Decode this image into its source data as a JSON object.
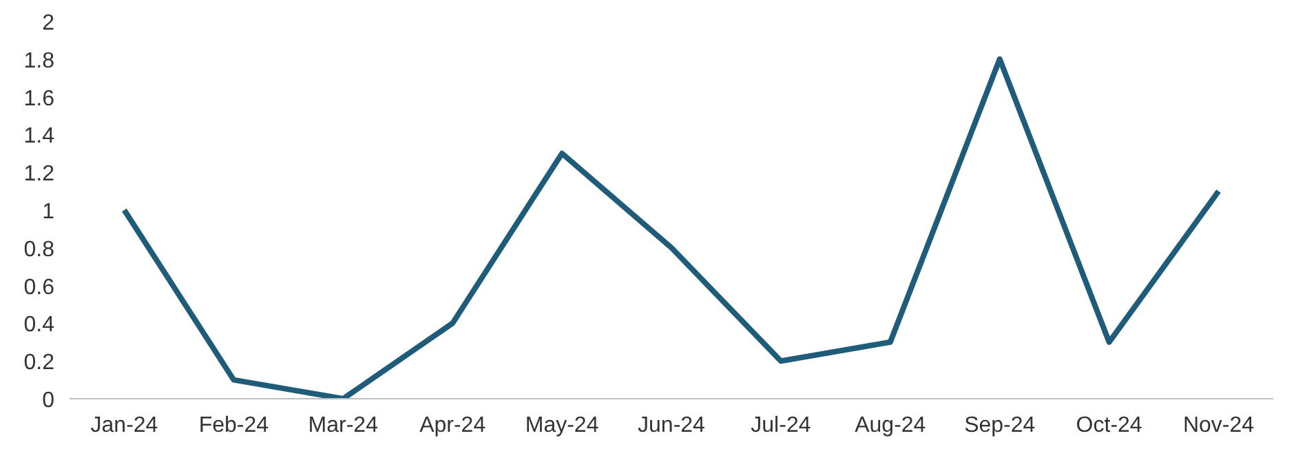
{
  "chart_data": {
    "type": "line",
    "categories": [
      "Jan-24",
      "Feb-24",
      "Mar-24",
      "Apr-24",
      "May-24",
      "Jun-24",
      "Jul-24",
      "Aug-24",
      "Sep-24",
      "Oct-24",
      "Nov-24"
    ],
    "series": [
      {
        "color": "#1f5c7a",
        "values": [
          1,
          0.1,
          0,
          0.4,
          1.3,
          0.8,
          0.2,
          0.3,
          1.8,
          0.3,
          1.1
        ]
      }
    ],
    "ylim": [
      0,
      2
    ],
    "yticks": [
      0,
      0.2,
      0.4,
      0.6,
      0.8,
      1,
      1.2,
      1.4,
      1.6,
      1.8,
      2
    ],
    "grid": false,
    "marker": "none",
    "line_style": "solid"
  }
}
